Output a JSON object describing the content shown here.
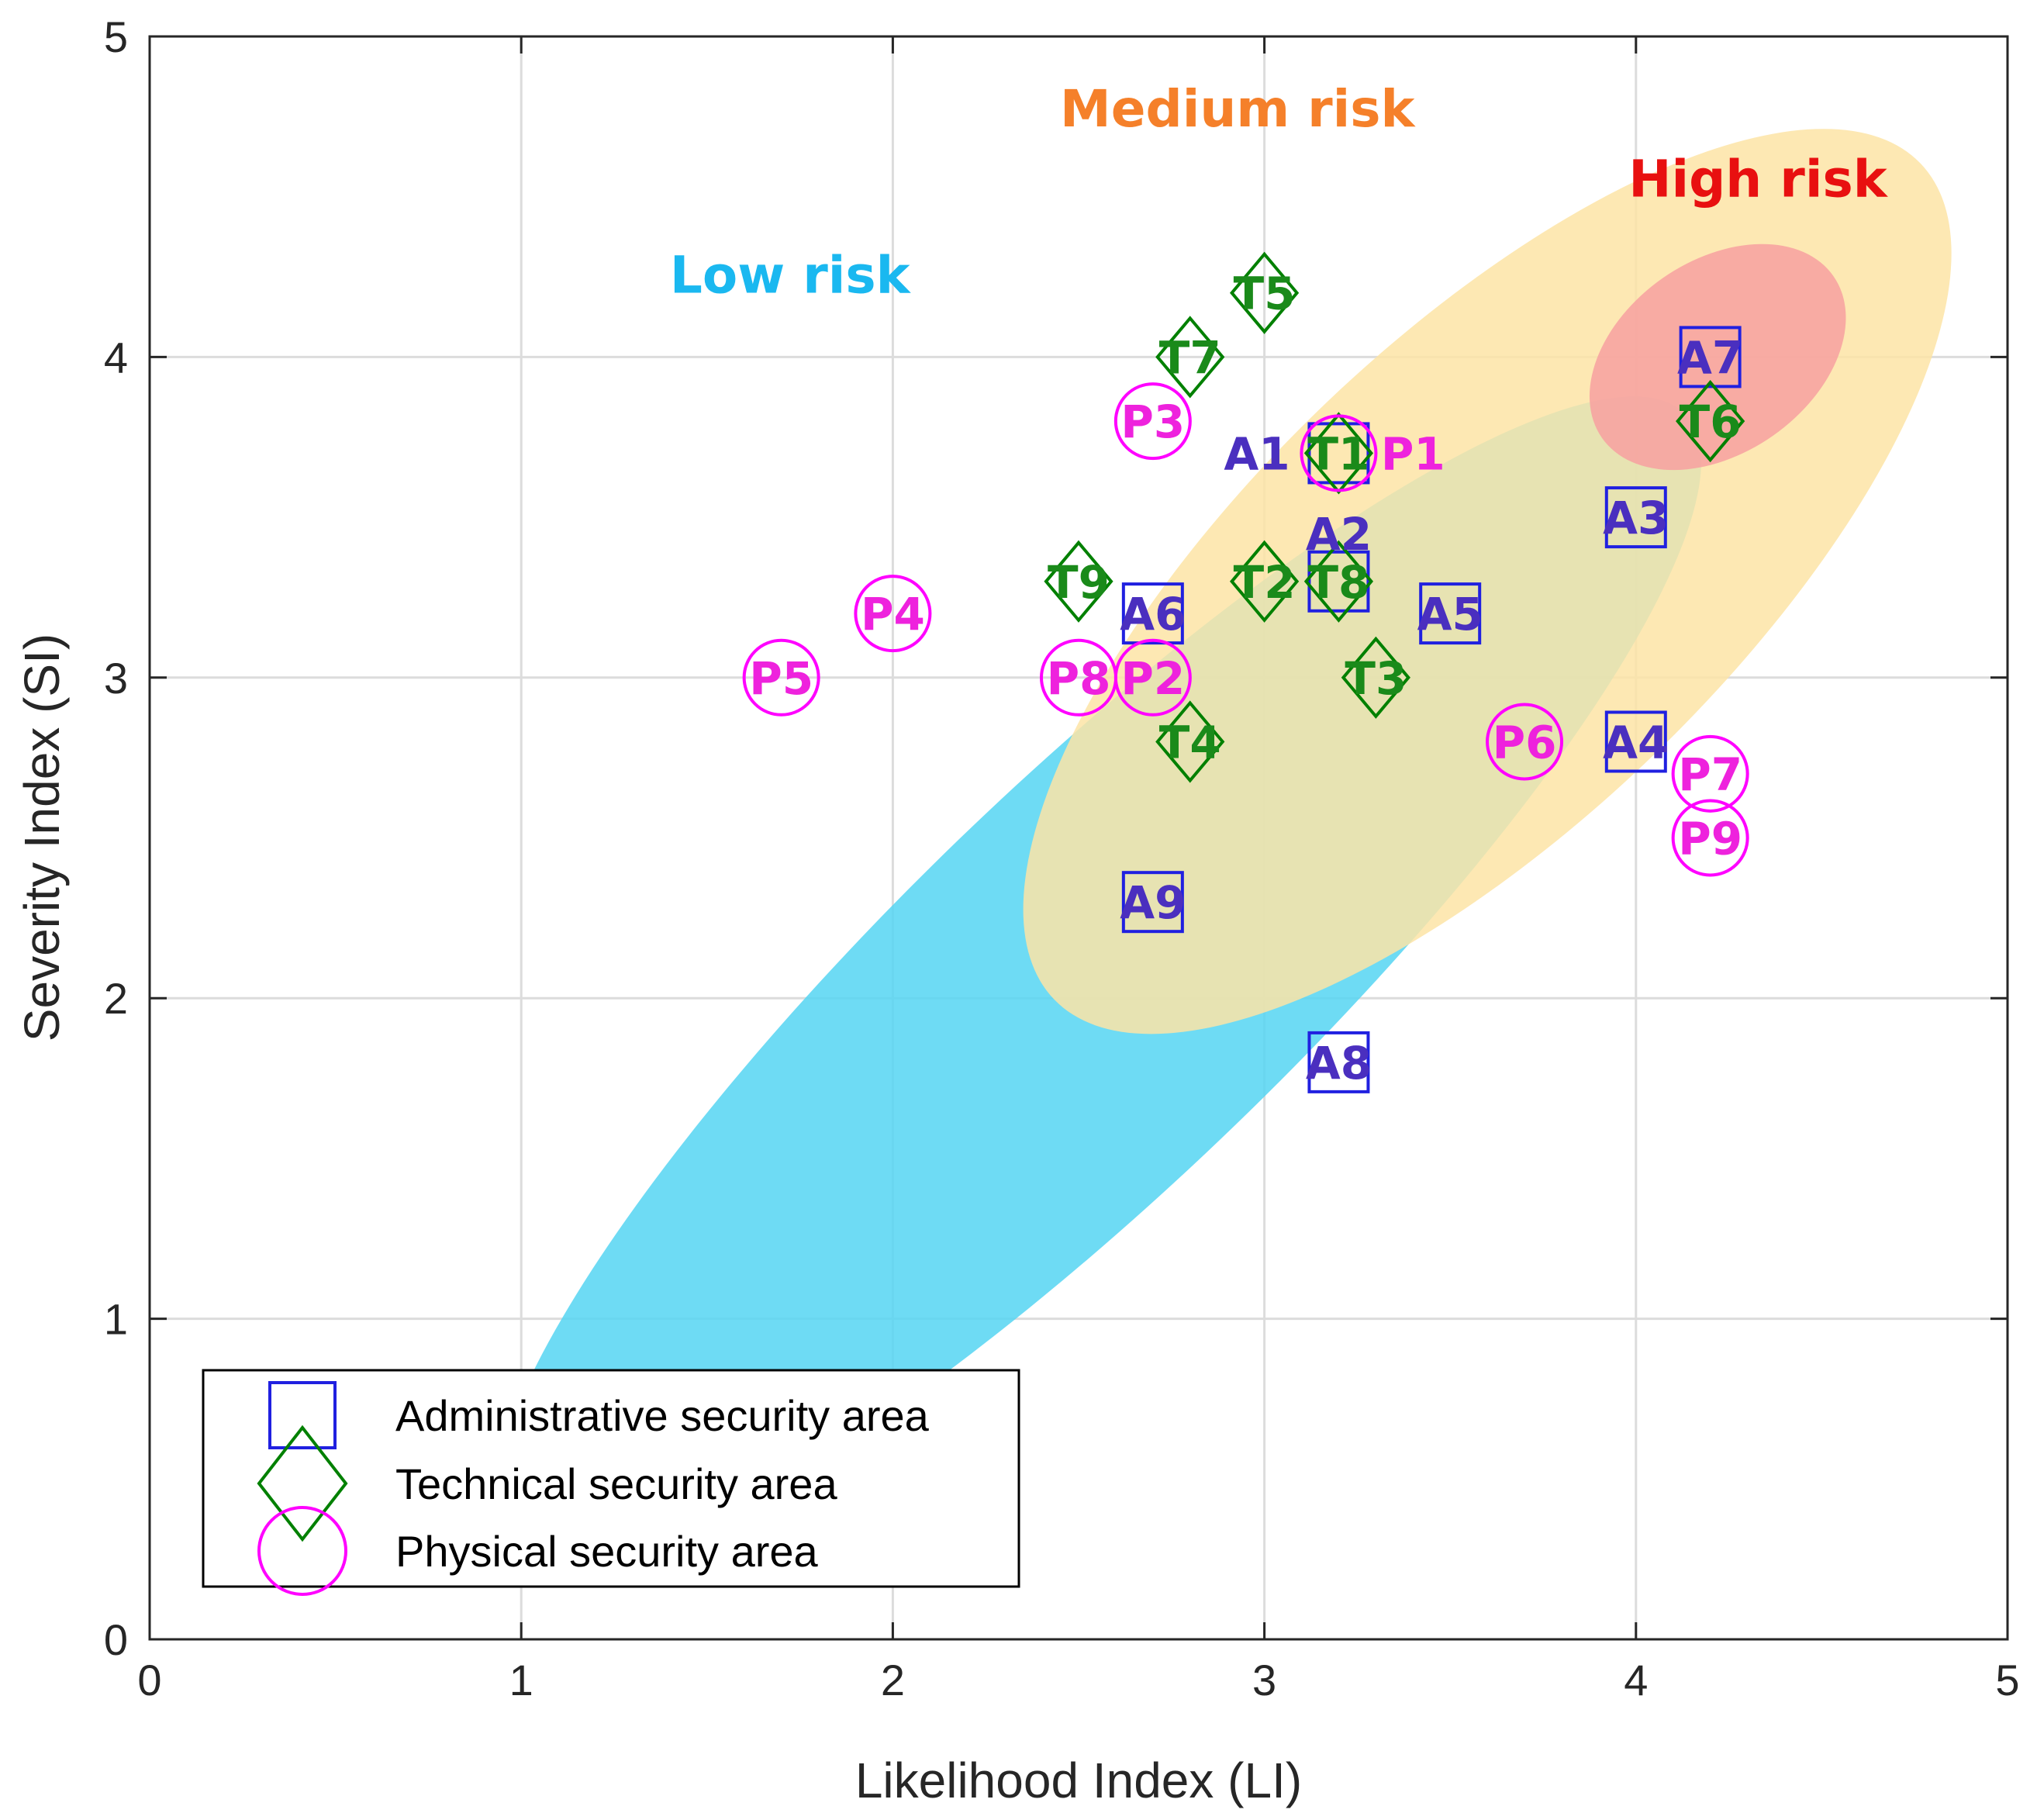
{
  "chart_data": {
    "type": "scatter",
    "title": "",
    "xlabel": "Likelihood Index (LI)",
    "ylabel": "Severity Index (SI)",
    "xlim": [
      0,
      5
    ],
    "ylim": [
      0,
      5
    ],
    "xticks": [
      "0",
      "1",
      "2",
      "3",
      "4",
      "5"
    ],
    "yticks": [
      "0",
      "1",
      "2",
      "3",
      "4",
      "5"
    ],
    "grid": true,
    "legend_position": "bottom-left",
    "series": [
      {
        "name": "Administrative security area",
        "marker": "square",
        "color": "#2020e0",
        "points": [
          {
            "label": "A1",
            "x": 3.2,
            "y": 3.7
          },
          {
            "label": "A2",
            "x": 3.2,
            "y": 3.3
          },
          {
            "label": "A3",
            "x": 4.0,
            "y": 3.5
          },
          {
            "label": "A4",
            "x": 4.0,
            "y": 2.8
          },
          {
            "label": "A5",
            "x": 3.5,
            "y": 3.2
          },
          {
            "label": "A6",
            "x": 2.7,
            "y": 3.2
          },
          {
            "label": "A7",
            "x": 4.2,
            "y": 4.0
          },
          {
            "label": "A8",
            "x": 3.2,
            "y": 1.8
          },
          {
            "label": "A9",
            "x": 2.7,
            "y": 2.3
          }
        ]
      },
      {
        "name": "Technical security area",
        "marker": "diamond",
        "color": "#008000",
        "points": [
          {
            "label": "T1",
            "x": 3.2,
            "y": 3.7
          },
          {
            "label": "T2",
            "x": 3.0,
            "y": 3.3
          },
          {
            "label": "T3",
            "x": 3.3,
            "y": 3.0
          },
          {
            "label": "T4",
            "x": 2.8,
            "y": 2.8
          },
          {
            "label": "T5",
            "x": 3.0,
            "y": 4.2
          },
          {
            "label": "T6",
            "x": 4.2,
            "y": 3.8
          },
          {
            "label": "T7",
            "x": 2.8,
            "y": 4.0
          },
          {
            "label": "T8",
            "x": 3.2,
            "y": 3.3
          },
          {
            "label": "T9",
            "x": 2.5,
            "y": 3.3
          }
        ]
      },
      {
        "name": "Physical security area",
        "marker": "circle",
        "color": "#ff00ff",
        "points": [
          {
            "label": "P1",
            "x": 3.2,
            "y": 3.7
          },
          {
            "label": "P2",
            "x": 2.7,
            "y": 3.0
          },
          {
            "label": "P3",
            "x": 2.7,
            "y": 3.8
          },
          {
            "label": "P4",
            "x": 2.0,
            "y": 3.2
          },
          {
            "label": "P5",
            "x": 1.7,
            "y": 3.0
          },
          {
            "label": "P6",
            "x": 3.7,
            "y": 2.8
          },
          {
            "label": "P7",
            "x": 4.2,
            "y": 2.7
          },
          {
            "label": "P8",
            "x": 2.5,
            "y": 3.0
          },
          {
            "label": "P9",
            "x": 4.2,
            "y": 2.5
          }
        ]
      }
    ],
    "regions": [
      {
        "name": "Low risk",
        "color": "#55d5f2",
        "label_color": "#1ab8f0",
        "cx": 2.55,
        "cy": 2.05,
        "rx": 2.2,
        "ry": 0.62,
        "angle": -44
      },
      {
        "name": "Medium risk",
        "color": "#fde4a6",
        "label_color": "#f5802a",
        "cx": 3.6,
        "cy": 3.3,
        "rx": 1.62,
        "ry": 0.75,
        "angle": -44
      },
      {
        "name": "High risk",
        "color": "#f7a0a0",
        "label_color": "#e81010",
        "cx": 4.22,
        "cy": 4.0,
        "rx": 0.38,
        "ry": 0.3,
        "angle": -35
      }
    ]
  }
}
